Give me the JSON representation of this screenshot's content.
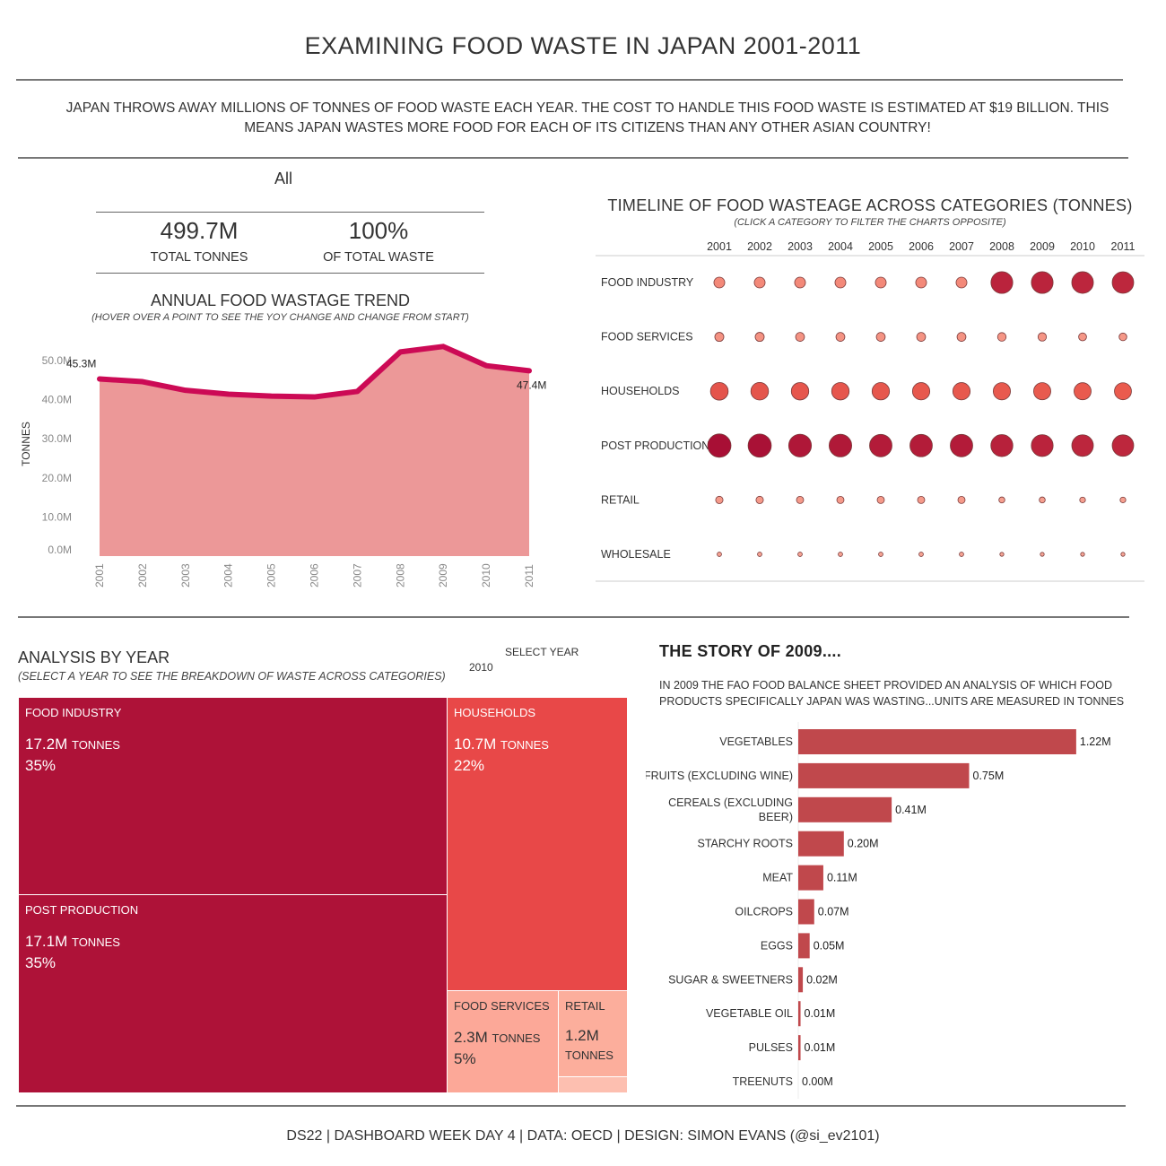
{
  "header": {
    "title": "EXAMINING FOOD WASTE IN JAPAN 2001-2011",
    "intro": "JAPAN THROWS AWAY MILLIONS OF TONNES OF FOOD WASTE EACH YEAR. THE COST TO HANDLE THIS FOOD WASTE IS ESTIMATED AT $19 BILLION. THIS MEANS JAPAN WASTES MORE FOOD FOR EACH OF ITS CITIZENS THAN ANY OTHER ASIAN COUNTRY!"
  },
  "kpi": {
    "filter": "All",
    "total_value": "499.7M",
    "total_label": "TOTAL TONNES",
    "pct_value": "100%",
    "pct_label": "OF TOTAL WASTE"
  },
  "colors": {
    "line": "#cc0a55",
    "area": "#ec9898",
    "treemap_dark": "#ae1238",
    "treemap_mid": "#e84848",
    "treemap_light": "#fca898",
    "bar": "#c0484c"
  },
  "chart_data": [
    {
      "type": "area",
      "title": "ANNUAL FOOD WASTAGE TREND",
      "subtitle": "(HOVER OVER A POINT TO SEE THE YOY CHANGE AND CHANGE FROM START)",
      "ylabel": "TONNES",
      "x": [
        "2001",
        "2002",
        "2003",
        "2004",
        "2005",
        "2006",
        "2007",
        "2008",
        "2009",
        "2010",
        "2011"
      ],
      "values": [
        45.3,
        44.6,
        42.4,
        41.4,
        40.9,
        40.7,
        42.1,
        52.2,
        53.6,
        48.7,
        47.4
      ],
      "unit": "M",
      "yticks": [
        "0.0M",
        "10.0M",
        "20.0M",
        "30.0M",
        "40.0M",
        "50.0M"
      ],
      "ylim": [
        0,
        55
      ],
      "data_labels": {
        "first": "45.3M",
        "last": "47.4M"
      }
    },
    {
      "type": "scatter",
      "title": "TIMELINE OF FOOD WASTEAGE ACROSS CATEGORIES (TONNES)",
      "subtitle": "(CLICK A CATEGORY TO FILTER THE CHARTS OPPOSITE)",
      "x": [
        "2001",
        "2002",
        "2003",
        "2004",
        "2005",
        "2006",
        "2007",
        "2008",
        "2009",
        "2010",
        "2011"
      ],
      "series": [
        {
          "name": "FOOD INDUSTRY",
          "values": [
            4.3,
            4.3,
            4.3,
            4.3,
            4.3,
            4.3,
            4.3,
            17.5,
            17.4,
            17.2,
            17.0
          ]
        },
        {
          "name": "FOOD SERVICES",
          "values": [
            3.0,
            3.0,
            2.9,
            2.9,
            2.9,
            2.9,
            2.9,
            2.7,
            2.6,
            2.3,
            2.2
          ]
        },
        {
          "name": "HOUSEHOLDS",
          "values": [
            11.5,
            11.4,
            11.2,
            11.2,
            11.1,
            11.0,
            11.0,
            10.9,
            10.8,
            10.7,
            10.6
          ]
        },
        {
          "name": "POST PRODUCTION",
          "values": [
            20.0,
            19.8,
            19.0,
            18.8,
            18.5,
            18.4,
            18.5,
            17.8,
            17.5,
            17.1,
            17.0
          ]
        },
        {
          "name": "RETAIL",
          "values": [
            2.0,
            2.0,
            1.9,
            1.9,
            1.9,
            1.9,
            1.9,
            1.3,
            1.3,
            1.2,
            1.2
          ]
        },
        {
          "name": "WHOLESALE",
          "values": [
            0.7,
            0.7,
            0.7,
            0.7,
            0.7,
            0.7,
            0.7,
            0.3,
            0.3,
            0.3,
            0.3
          ]
        }
      ]
    },
    {
      "type": "treemap",
      "title": "ANALYSIS BY YEAR",
      "subtitle": "(SELECT A YEAR TO SEE THE BREAKDOWN OF WASTE ACROSS CATEGORIES)",
      "select_label": "SELECT YEAR",
      "selected_year": "2010",
      "unit_label": "TONNES",
      "items": [
        {
          "name": "FOOD INDUSTRY",
          "value": "17.2M",
          "pct": "35%"
        },
        {
          "name": "POST PRODUCTION",
          "value": "17.1M",
          "pct": "35%"
        },
        {
          "name": "HOUSEHOLDS",
          "value": "10.7M",
          "pct": "22%"
        },
        {
          "name": "FOOD SERVICES",
          "value": "2.3M",
          "pct": "5%"
        },
        {
          "name": "RETAIL",
          "value": "1.2M"
        },
        {
          "name": "",
          "value": ""
        }
      ]
    },
    {
      "type": "bar",
      "title": "THE STORY OF 2009....",
      "subtitle": "IN 2009 THE FAO FOOD BALANCE SHEET PROVIDED AN ANALYSIS OF WHICH FOOD PRODUCTS SPECIFICALLY JAPAN WAS WASTING...UNITS ARE MEASURED IN TONNES",
      "categories": [
        "VEGETABLES",
        "FRUITS (EXCLUDING WINE)",
        "CEREALS (EXCLUDING BEER)",
        "STARCHY ROOTS",
        "MEAT",
        "OILCROPS",
        "EGGS",
        "SUGAR & SWEETNERS",
        "VEGETABLE OIL",
        "PULSES",
        "TREENUTS"
      ],
      "values": [
        1.22,
        0.75,
        0.41,
        0.2,
        0.11,
        0.07,
        0.05,
        0.02,
        0.01,
        0.01,
        0.0
      ],
      "labels": [
        "1.22M",
        "0.75M",
        "0.41M",
        "0.20M",
        "0.11M",
        "0.07M",
        "0.05M",
        "0.02M",
        "0.01M",
        "0.01M",
        "0.00M"
      ]
    }
  ],
  "footer": "DS22  |  DASHBOARD WEEK DAY 4  | DATA: OECD  |  DESIGN: SIMON EVANS (@si_ev2101)"
}
